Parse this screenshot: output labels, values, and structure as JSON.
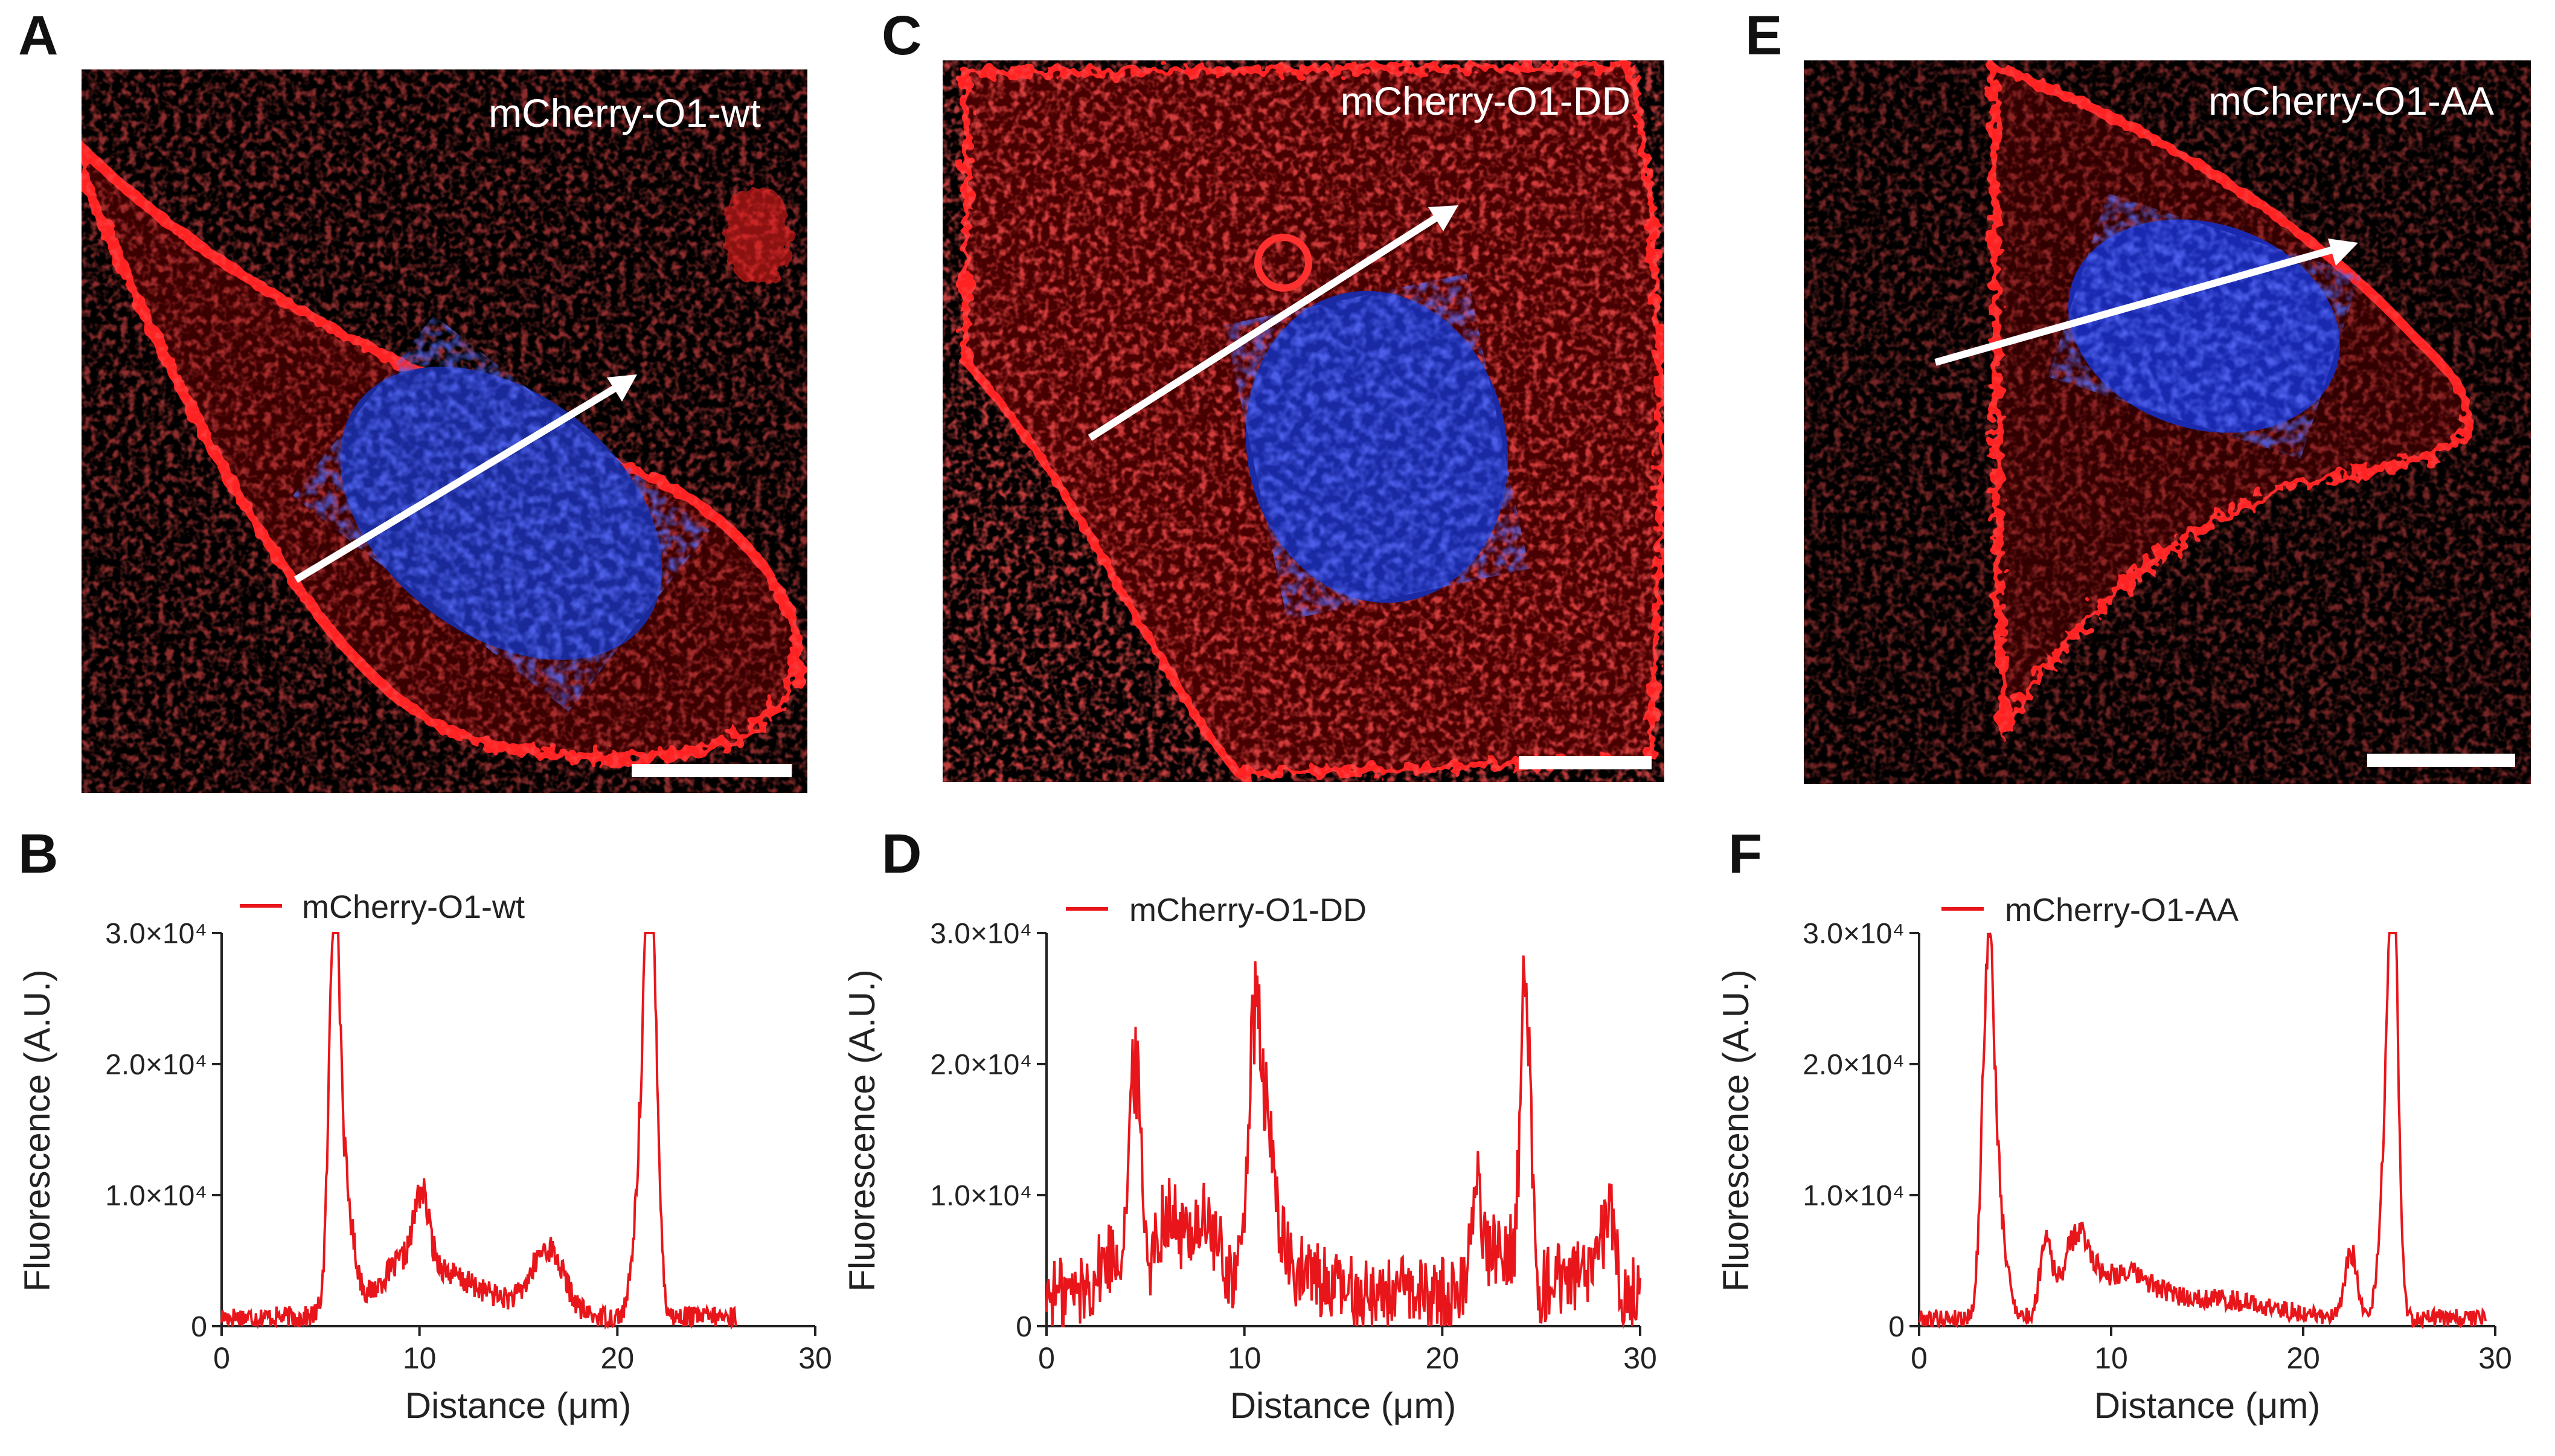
{
  "panels": {
    "A": {
      "letter": "A",
      "label": "mCherry-O1-wt"
    },
    "C": {
      "letter": "C",
      "label": "mCherry-O1-DD"
    },
    "E": {
      "letter": "E",
      "label": "mCherry-O1-AA"
    },
    "B": {
      "letter": "B"
    },
    "D": {
      "letter": "D"
    },
    "F": {
      "letter": "F"
    }
  },
  "colors": {
    "trace": "#e8161b",
    "membrane": "#ff1a1a",
    "nucleus": "#2233cc",
    "background": "#000000",
    "arrow": "#ffffff"
  },
  "chart_data": [
    {
      "type": "line",
      "panel": "B",
      "legend": "mCherry-O1-wt",
      "xlabel": "Distance (μm)",
      "ylabel": "Fluorescence (A.U.)",
      "xlim": [
        0,
        30
      ],
      "ylim": [
        0,
        30000
      ],
      "xticks": [
        0,
        10,
        20,
        30
      ],
      "xtick_labels": [
        "0",
        "10",
        "20",
        "30"
      ],
      "yticks": [
        0,
        10000,
        20000,
        30000
      ],
      "ytick_labels": [
        "0",
        "1.0×10⁴",
        "2.0×10⁴",
        "3.0×10⁴"
      ],
      "x_end": 26,
      "baseline": 700,
      "peaks": [
        [
          5.7,
          26500,
          0.25
        ],
        [
          6.1,
          10000,
          0.5
        ],
        [
          9.5,
          4000,
          1.5
        ],
        [
          10.1,
          5000,
          0.35
        ],
        [
          16.5,
          5000,
          0.8
        ],
        [
          21.7,
          29500,
          0.3
        ],
        [
          21.3,
          12000,
          0.4
        ],
        [
          12.5,
          2000,
          2.0
        ]
      ]
    },
    {
      "type": "line",
      "panel": "D",
      "legend": "mCherry-O1-DD",
      "xlabel": "Distance (μm)",
      "ylabel": "Fluorescence (A.U.)",
      "xlim": [
        0,
        30
      ],
      "ylim": [
        0,
        30000
      ],
      "xticks": [
        0,
        10,
        20,
        30
      ],
      "xtick_labels": [
        "0",
        "10",
        "20",
        "30"
      ],
      "yticks": [
        0,
        10000,
        20000,
        30000
      ],
      "ytick_labels": [
        "0",
        "1.0×10⁴",
        "2.0×10⁴",
        "3.0×10⁴"
      ],
      "x_end": 30,
      "baseline": 2500,
      "peaks": [
        [
          4.5,
          16000,
          0.3
        ],
        [
          3.5,
          3000,
          0.8
        ],
        [
          6.0,
          5500,
          0.5
        ],
        [
          7.8,
          5500,
          0.9
        ],
        [
          10.5,
          17000,
          0.35
        ],
        [
          11.2,
          10000,
          0.5
        ],
        [
          13.0,
          1500,
          1.0
        ],
        [
          21.7,
          8000,
          0.3
        ],
        [
          24.2,
          23500,
          0.25
        ],
        [
          23.0,
          4000,
          0.6
        ],
        [
          28.4,
          6500,
          0.3
        ],
        [
          26.5,
          1500,
          1.0
        ]
      ]
    },
    {
      "type": "line",
      "panel": "F",
      "legend": "mCherry-O1-AA",
      "xlabel": "Distance (μm)",
      "ylabel": "Fluorescence (A.U.)",
      "xlim": [
        0,
        30
      ],
      "ylim": [
        0,
        30000
      ],
      "xticks": [
        0,
        10,
        20,
        30
      ],
      "xtick_labels": [
        "0",
        "10",
        "20",
        "30"
      ],
      "yticks": [
        0,
        10000,
        20000,
        30000
      ],
      "ytick_labels": [
        "0",
        "1.0×10⁴",
        "2.0×10⁴",
        "3.0×10⁴"
      ],
      "x_end": 29.5,
      "baseline": 600,
      "peaks": [
        [
          3.6,
          23500,
          0.3
        ],
        [
          4.0,
          8000,
          0.5
        ],
        [
          6.6,
          6000,
          0.3
        ],
        [
          8.2,
          5500,
          0.7
        ],
        [
          10.5,
          3000,
          1.5
        ],
        [
          15.0,
          1500,
          3.0
        ],
        [
          22.5,
          5000,
          0.3
        ],
        [
          24.7,
          27000,
          0.25
        ],
        [
          24.4,
          14000,
          0.35
        ]
      ]
    }
  ]
}
